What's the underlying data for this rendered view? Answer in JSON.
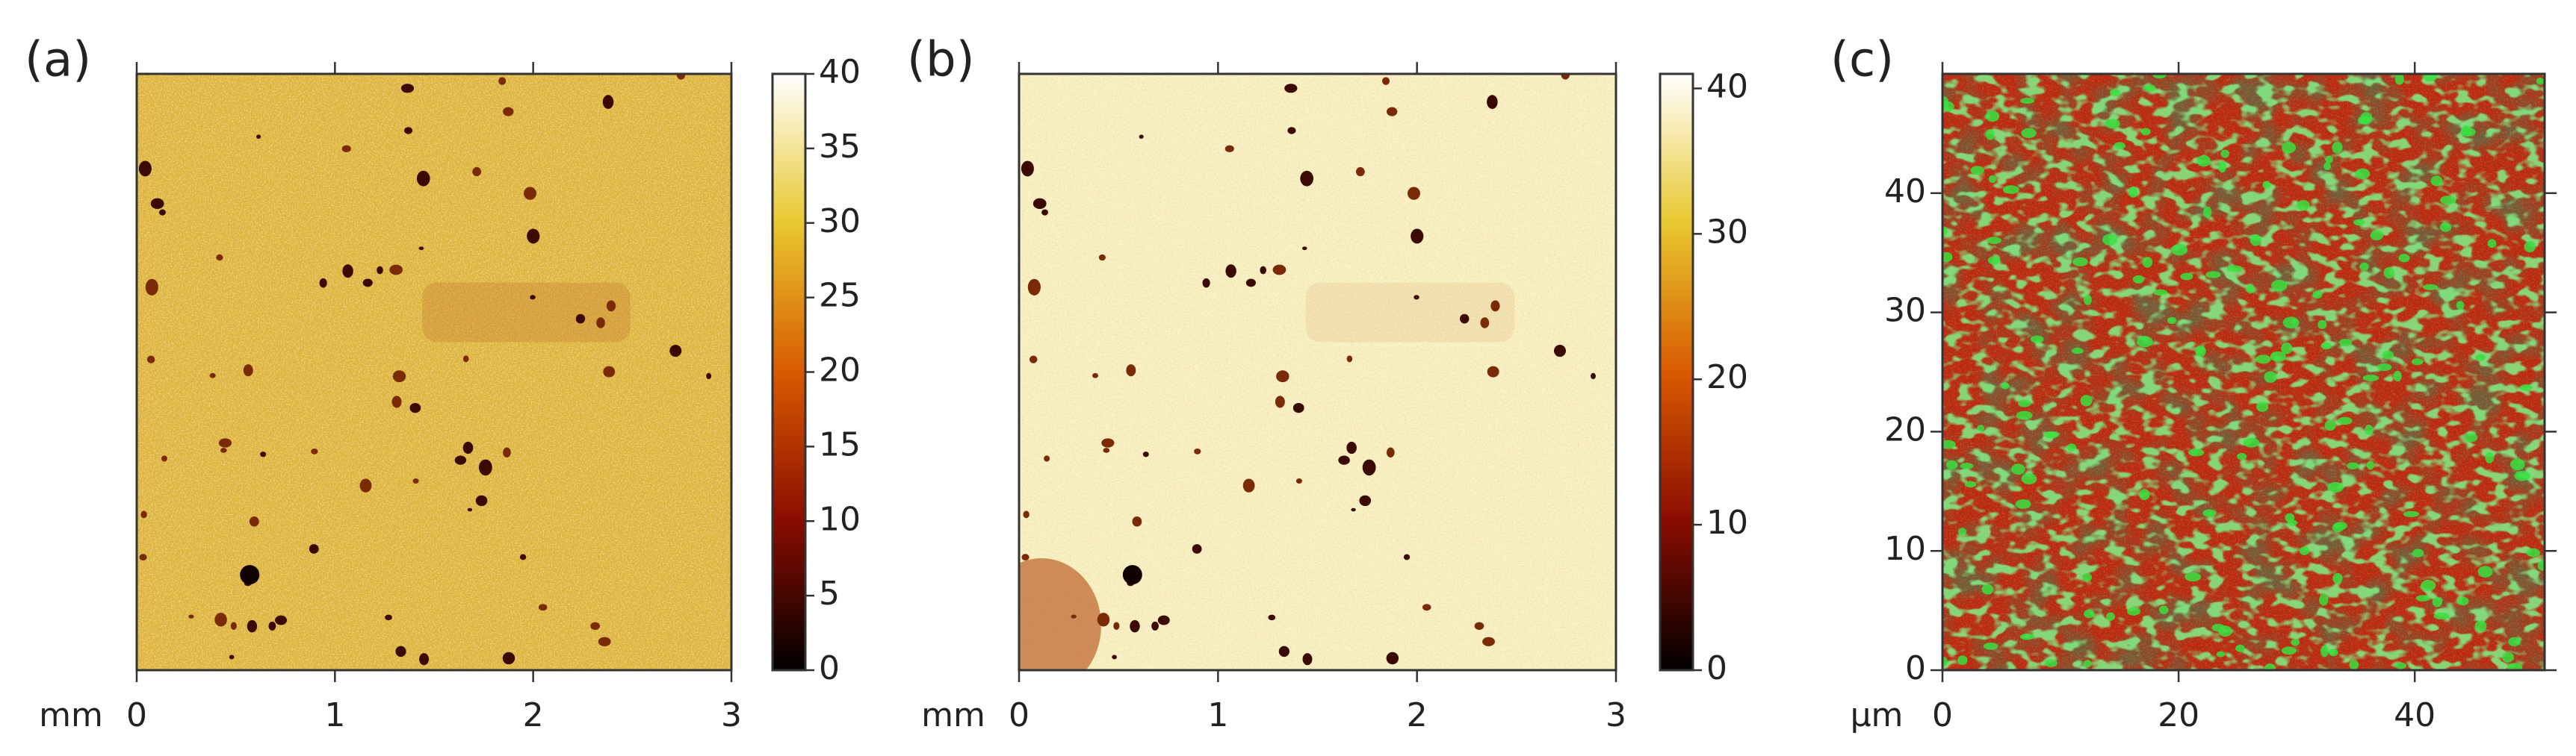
{
  "chart_data": [
    {
      "type": "heatmap",
      "label": "(a)",
      "xlabel": "mm",
      "xlim": [
        0,
        3
      ],
      "xticks": [
        0,
        1,
        2,
        3
      ],
      "ylim": [
        0,
        3
      ],
      "color": "#dcb43c",
      "colormap": [
        "#000000",
        "#8a0c00",
        "#d85a00",
        "#e8c830",
        "#ffffff"
      ],
      "colorbar": {
        "lim": [
          0,
          40
        ],
        "ticks": [
          0,
          5,
          10,
          15,
          20,
          25,
          30,
          35,
          40
        ]
      }
    },
    {
      "type": "heatmap",
      "label": "(b)",
      "xlabel": "mm",
      "xlim": [
        0,
        3
      ],
      "xticks": [
        0,
        1,
        2,
        3
      ],
      "ylim": [
        0,
        3
      ],
      "color": "#f7efc2",
      "colormap": [
        "#000000",
        "#8a0c00",
        "#d85a00",
        "#e8c830",
        "#ffffff"
      ],
      "colorbar": {
        "lim": [
          0,
          41
        ],
        "ticks": [
          0,
          10,
          20,
          30,
          40
        ]
      }
    },
    {
      "type": "image",
      "label": "(c)",
      "xlabel": "µm",
      "xlim": [
        0,
        51
      ],
      "xticks": [
        0,
        20,
        40
      ],
      "ylim": [
        0,
        50
      ],
      "yticks": [
        0,
        10,
        20,
        30,
        40
      ],
      "colors": [
        "#b82a14",
        "#38e040"
      ]
    }
  ]
}
